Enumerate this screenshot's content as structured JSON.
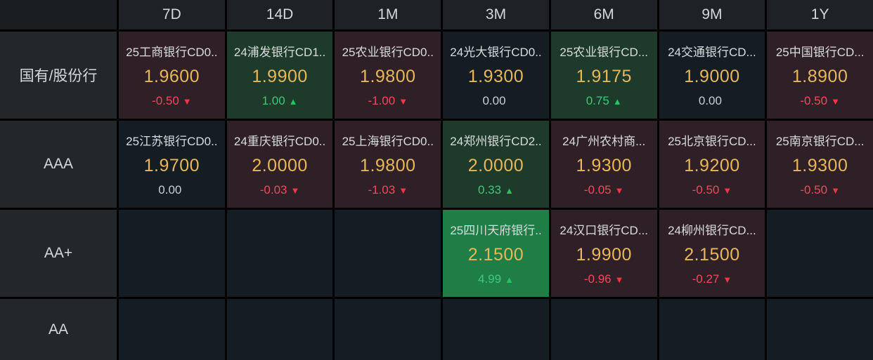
{
  "colors": {
    "value_gold": "#e9b658",
    "up_green_text": "#3ec97a",
    "up_triangle": "#22c55e",
    "down_red_text": "#f3495c",
    "down_triangle": "#f23645",
    "neutral_text": "#cbced0",
    "tint_red_bg": "#2e2026",
    "tint_green_bg": "#1d3a2b",
    "tint_bright_green_bg": "#1f7e45",
    "tint_neutral_bg": "#141d24",
    "header_bg": "#1e2125",
    "row_label_bg": "#242729",
    "grid_line": "#000000"
  },
  "table": {
    "columns": [
      "7D",
      "14D",
      "1M",
      "3M",
      "6M",
      "9M",
      "1Y"
    ],
    "rows": [
      {
        "label": "国有/股份行",
        "cells": [
          {
            "name": "25工商银行CD0..",
            "value": "1.9600",
            "change": "-0.50",
            "icon": "▼",
            "tint": "red",
            "dir": "down"
          },
          {
            "name": "24浦发银行CD1..",
            "value": "1.9900",
            "change": "1.00",
            "icon": "▲",
            "tint": "green",
            "dir": "up"
          },
          {
            "name": "25农业银行CD0..",
            "value": "1.9800",
            "change": "-1.00",
            "icon": "▼",
            "tint": "red",
            "dir": "down"
          },
          {
            "name": "24光大银行CD0..",
            "value": "1.9300",
            "change": "0.00",
            "icon": "",
            "tint": "neutral",
            "dir": "flat"
          },
          {
            "name": "25农业银行CD...",
            "value": "1.9175",
            "change": "0.75",
            "icon": "▲",
            "tint": "green",
            "dir": "up"
          },
          {
            "name": "24交通银行CD...",
            "value": "1.9000",
            "change": "0.00",
            "icon": "",
            "tint": "neutral",
            "dir": "flat"
          },
          {
            "name": "25中国银行CD...",
            "value": "1.8900",
            "change": "-0.50",
            "icon": "▼",
            "tint": "red",
            "dir": "down"
          }
        ]
      },
      {
        "label": "AAA",
        "cells": [
          {
            "name": "25江苏银行CD0..",
            "value": "1.9700",
            "change": "0.00",
            "icon": "",
            "tint": "neutral",
            "dir": "flat"
          },
          {
            "name": "24重庆银行CD0..",
            "value": "2.0000",
            "change": "-0.03",
            "icon": "▼",
            "tint": "red",
            "dir": "down"
          },
          {
            "name": "25上海银行CD0..",
            "value": "1.9800",
            "change": "-1.03",
            "icon": "▼",
            "tint": "red",
            "dir": "down"
          },
          {
            "name": "24郑州银行CD2..",
            "value": "2.0000",
            "change": "0.33",
            "icon": "▲",
            "tint": "green",
            "dir": "up"
          },
          {
            "name": "24广州农村商...",
            "value": "1.9300",
            "change": "-0.05",
            "icon": "▼",
            "tint": "red",
            "dir": "down"
          },
          {
            "name": "25北京银行CD...",
            "value": "1.9200",
            "change": "-0.50",
            "icon": "▼",
            "tint": "red",
            "dir": "down"
          },
          {
            "name": "25南京银行CD...",
            "value": "1.9300",
            "change": "-0.50",
            "icon": "▼",
            "tint": "red",
            "dir": "down"
          }
        ]
      },
      {
        "label": "AA+",
        "cells": [
          {
            "name": "",
            "value": "",
            "change": "",
            "icon": "",
            "tint": "empty",
            "dir": "none"
          },
          {
            "name": "",
            "value": "",
            "change": "",
            "icon": "",
            "tint": "empty",
            "dir": "none"
          },
          {
            "name": "",
            "value": "",
            "change": "",
            "icon": "",
            "tint": "empty",
            "dir": "none"
          },
          {
            "name": "25四川天府银行..",
            "value": "2.1500",
            "change": "4.99",
            "icon": "▲",
            "tint": "bright-green",
            "dir": "up"
          },
          {
            "name": "24汉口银行CD...",
            "value": "1.9900",
            "change": "-0.96",
            "icon": "▼",
            "tint": "red",
            "dir": "down"
          },
          {
            "name": "24柳州银行CD...",
            "value": "2.1500",
            "change": "-0.27",
            "icon": "▼",
            "tint": "red",
            "dir": "down"
          },
          {
            "name": "",
            "value": "",
            "change": "",
            "icon": "",
            "tint": "empty",
            "dir": "none"
          }
        ]
      },
      {
        "label": "AA",
        "cells": [
          {
            "name": "",
            "value": "",
            "change": "",
            "icon": "",
            "tint": "empty",
            "dir": "none"
          },
          {
            "name": "",
            "value": "",
            "change": "",
            "icon": "",
            "tint": "empty",
            "dir": "none"
          },
          {
            "name": "",
            "value": "",
            "change": "",
            "icon": "",
            "tint": "empty",
            "dir": "none"
          },
          {
            "name": "",
            "value": "",
            "change": "",
            "icon": "",
            "tint": "empty",
            "dir": "none"
          },
          {
            "name": "",
            "value": "",
            "change": "",
            "icon": "",
            "tint": "empty",
            "dir": "none"
          },
          {
            "name": "",
            "value": "",
            "change": "",
            "icon": "",
            "tint": "empty",
            "dir": "none"
          },
          {
            "name": "",
            "value": "",
            "change": "",
            "icon": "",
            "tint": "empty",
            "dir": "none"
          }
        ]
      }
    ]
  }
}
